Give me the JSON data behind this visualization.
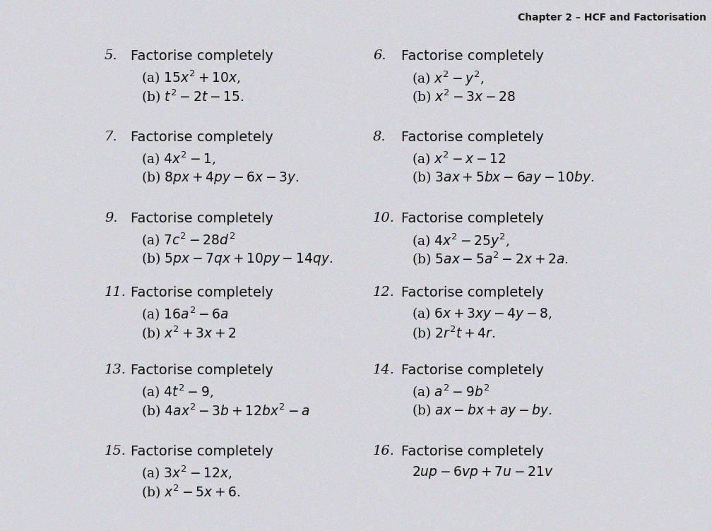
{
  "title": "Chapter 2 – HCF and Factorisation",
  "bg_color": "#d4d4db",
  "title_color": "#1a1a1a",
  "text_color": "#111111",
  "fig_w": 10.08,
  "fig_h": 7.52,
  "dpi": 100,
  "items": [
    {
      "num": "5.",
      "heading": "Factorise completely",
      "lines": [
        "(a) $15x^2 + 10x$,",
        "(b) $t^2 - 2t - 15$."
      ],
      "col": 0,
      "row": 0
    },
    {
      "num": "6.",
      "heading": "Factorise completely",
      "lines": [
        "(a) $x^2 - y^2$,",
        "(b) $x^2 - 3x - 28$"
      ],
      "col": 1,
      "row": 0
    },
    {
      "num": "7.",
      "heading": "Factorise completely",
      "lines": [
        "(a) $4x^2 - 1$,",
        "(b) $8px + 4py - 6x - 3y$."
      ],
      "col": 0,
      "row": 1
    },
    {
      "num": "8.",
      "heading": "Factorise completely",
      "lines": [
        "(a) $x^2 - x - 12$",
        "(b) $3ax + 5bx - 6ay - 10by$."
      ],
      "col": 1,
      "row": 1
    },
    {
      "num": "9.",
      "heading": "Factorise completely",
      "lines": [
        "(a) $7c^2 - 28d^2$",
        "(b) $5px - 7qx + 10py - 14qy$."
      ],
      "col": 0,
      "row": 2
    },
    {
      "num": "10.",
      "heading": "Factorise completely",
      "lines": [
        "(a) $4x^2 - 25y^2$,",
        "(b) $5ax - 5a^2 - 2x + 2a$."
      ],
      "col": 1,
      "row": 2
    },
    {
      "num": "11.",
      "heading": "Factorise completely",
      "lines": [
        "(a) $16a^2 - 6a$",
        "(b) $x^2 + 3x + 2$"
      ],
      "col": 0,
      "row": 3
    },
    {
      "num": "12.",
      "heading": "Factorise completely",
      "lines": [
        "(a) $6x + 3xy - 4y - 8$,",
        "(b) $2r^2t + 4r$."
      ],
      "col": 1,
      "row": 3
    },
    {
      "num": "13.",
      "heading": "Factorise completely",
      "lines": [
        "(a) $4t^2 - 9$,",
        "(b) $4ax^2 - 3b + 12bx^2 - a$"
      ],
      "col": 0,
      "row": 4
    },
    {
      "num": "14.",
      "heading": "Factorise completely",
      "lines": [
        "(a) $a^2 - 9b^2$",
        "(b) $ax - bx + ay - by$."
      ],
      "col": 1,
      "row": 4
    },
    {
      "num": "15.",
      "heading": "Factorise completely",
      "lines": [
        "(a) $3x^2 - 12x$,",
        "(b) $x^2 - 5x + 6$."
      ],
      "col": 0,
      "row": 5
    },
    {
      "num": "16.",
      "heading": "Factorise completely",
      "lines": [
        "$2up - 6vp + 7u - 21v$"
      ],
      "col": 1,
      "row": 5
    }
  ]
}
